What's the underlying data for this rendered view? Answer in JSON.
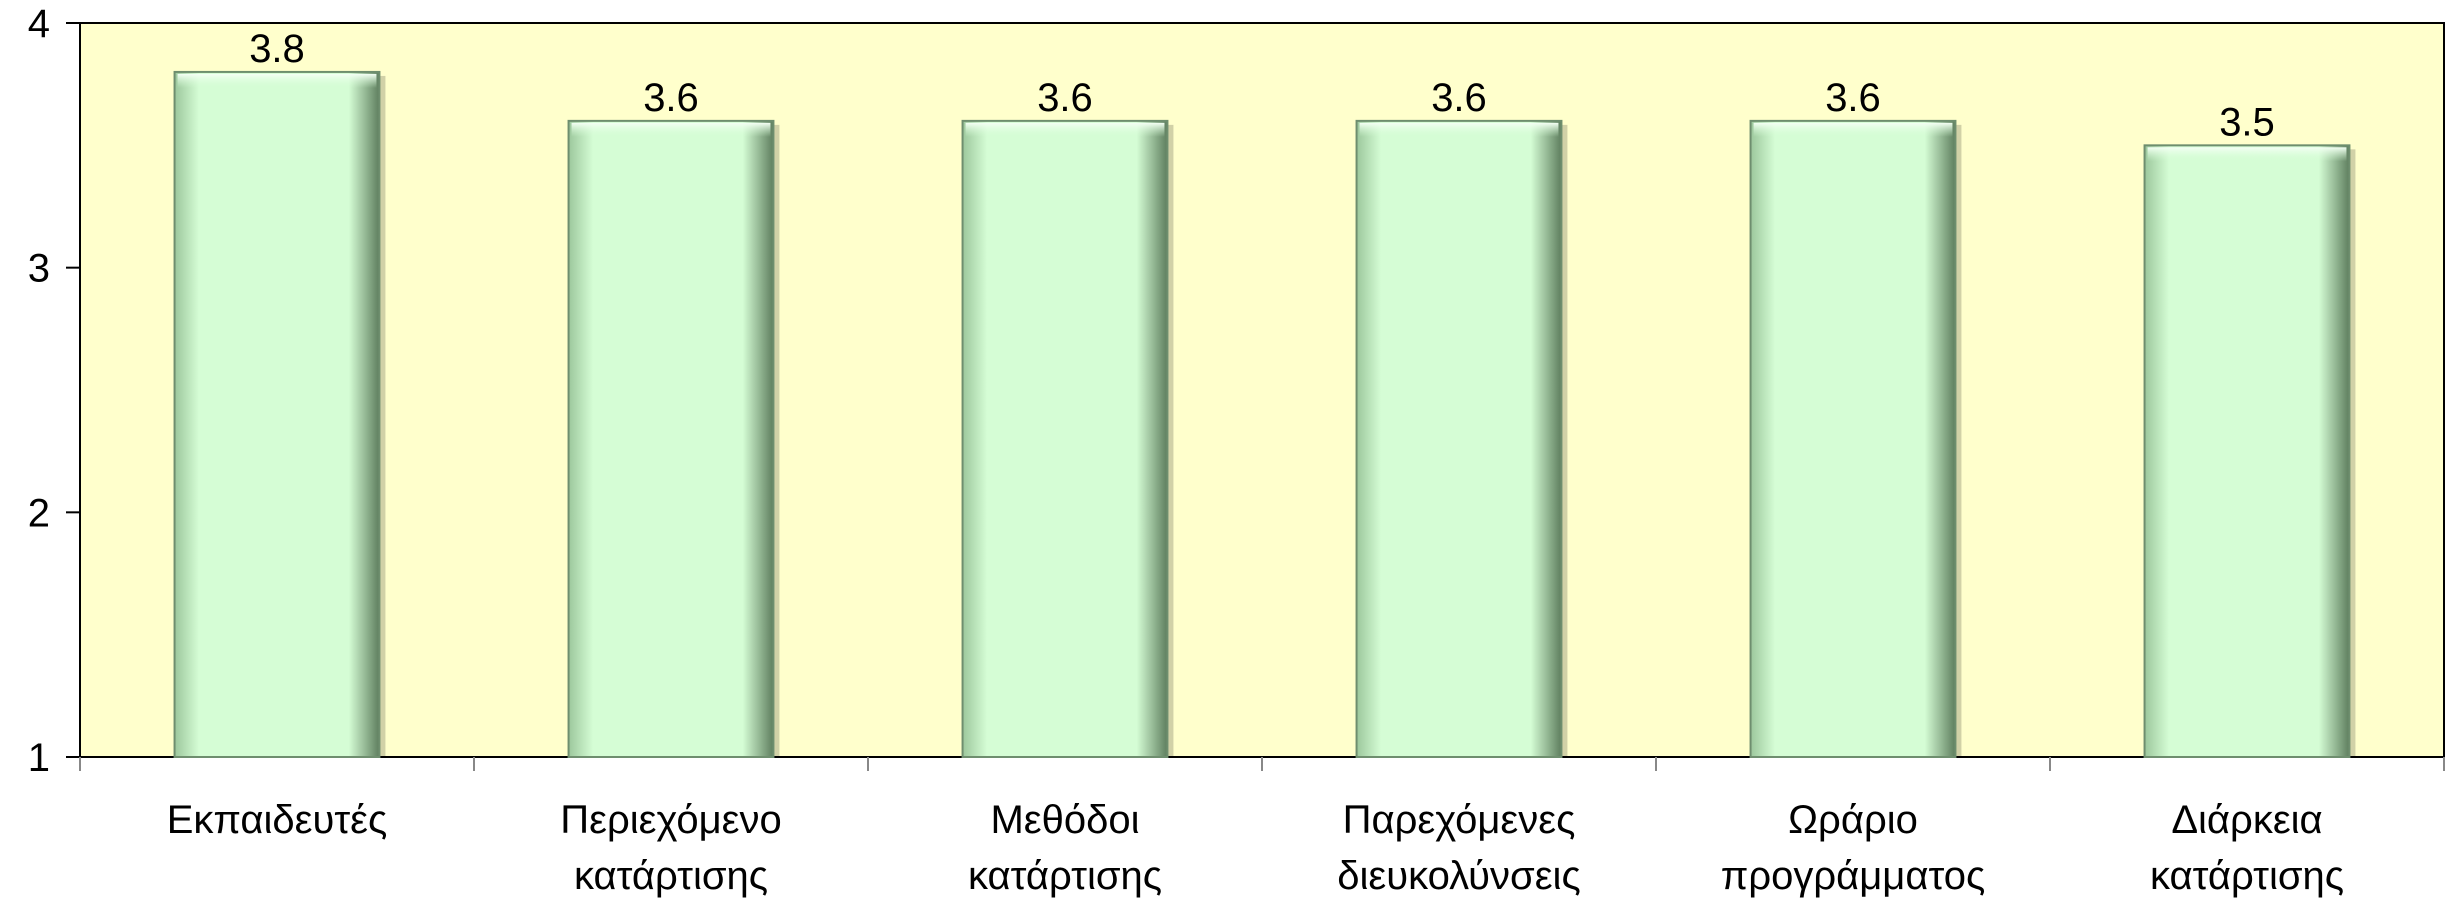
{
  "chart_data": {
    "type": "bar",
    "categories": [
      [
        "Εκπαιδευτές"
      ],
      [
        "Περιεχόμενο",
        "κατάρτισης"
      ],
      [
        "Μεθόδοι",
        "κατάρτισης"
      ],
      [
        "Παρεχόμενες",
        "διευκολύνσεις"
      ],
      [
        "Ωράριο",
        "προγράμματος"
      ],
      [
        "Διάρκεια",
        "κατάρτισης"
      ]
    ],
    "values": [
      3.8,
      3.6,
      3.6,
      3.6,
      3.6,
      3.5
    ],
    "value_labels": [
      "3.8",
      "3.6",
      "3.6",
      "3.6",
      "3.6",
      "3.5"
    ],
    "ylim": [
      1,
      4
    ],
    "yticks": [
      "1",
      "2",
      "3",
      "4"
    ],
    "title": "",
    "xlabel": "",
    "ylabel": "",
    "grid": false,
    "legend": "none",
    "colors": {
      "plot_background": "#FFFFCC",
      "bar_fill": "#D5FDD5",
      "bar_edge": "#6E8E6E",
      "axis": "#000000"
    }
  }
}
